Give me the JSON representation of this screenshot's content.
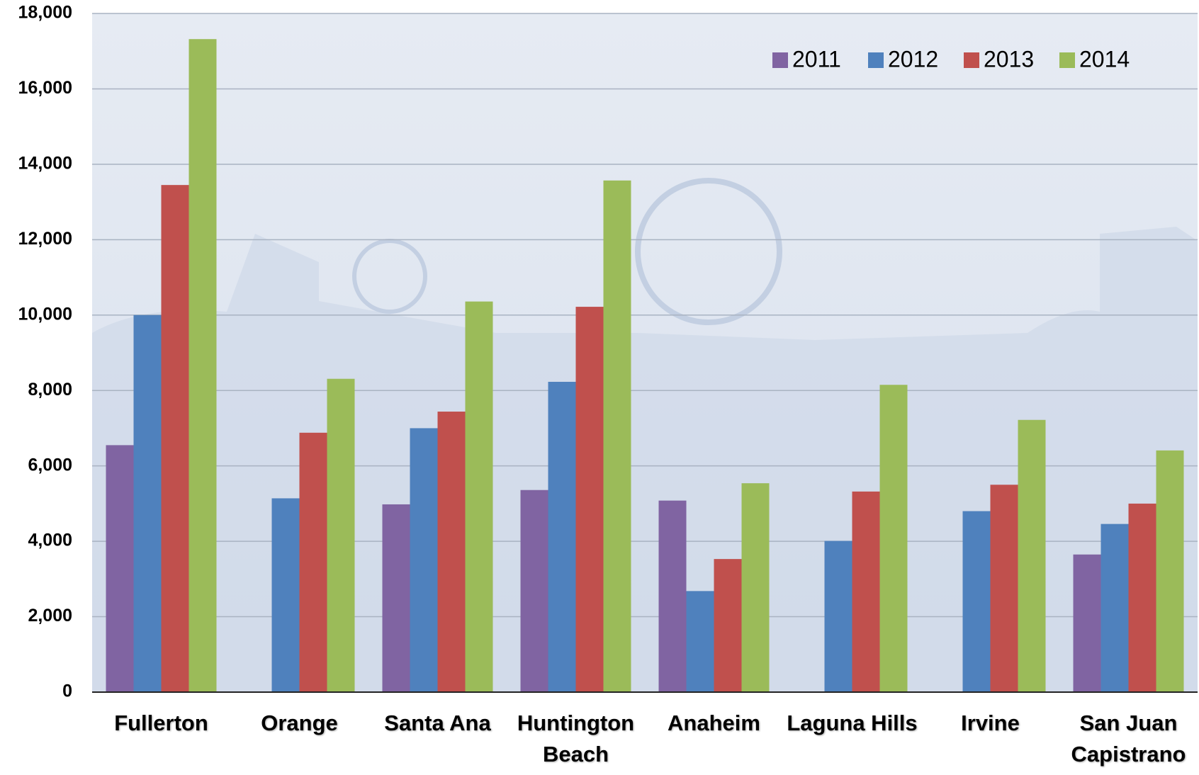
{
  "chart_data": {
    "type": "bar",
    "categories": [
      "Fullerton",
      "Orange",
      "Santa Ana",
      "Huntington Beach",
      "Anaheim",
      "Laguna Hills",
      "Irvine",
      "San Juan Capistrano"
    ],
    "series": [
      {
        "name": "2011",
        "color": "#8064a2",
        "values": [
          6550,
          null,
          4980,
          5360,
          5080,
          null,
          null,
          3650
        ]
      },
      {
        "name": "2012",
        "color": "#4f81bd",
        "values": [
          10000,
          5140,
          7000,
          8230,
          2680,
          4010,
          4800,
          4460
        ]
      },
      {
        "name": "2013",
        "color": "#c0504d",
        "values": [
          13450,
          6880,
          7440,
          10220,
          3530,
          5320,
          5500,
          5000
        ]
      },
      {
        "name": "2014",
        "color": "#9bbb59",
        "values": [
          17320,
          8310,
          10360,
          13570,
          5540,
          8150,
          7220,
          6410
        ]
      }
    ],
    "ylim": [
      0,
      18000
    ],
    "yticks": [
      0,
      {
        "value": 2000,
        "label": "2,000"
      },
      {
        "value": 4000,
        "label": "4,000"
      },
      {
        "value": 6000,
        "label": "6,000"
      },
      {
        "value": 8000,
        "label": "8,000"
      },
      {
        "value": 10000,
        "label": "10,000"
      },
      {
        "value": 12000,
        "label": "12,000"
      },
      {
        "value": 14000,
        "label": "14,000"
      },
      {
        "value": 16000,
        "label": "16,000"
      },
      {
        "value": 18000,
        "label": "18,000"
      }
    ],
    "grid": true,
    "legend": "top-right"
  }
}
